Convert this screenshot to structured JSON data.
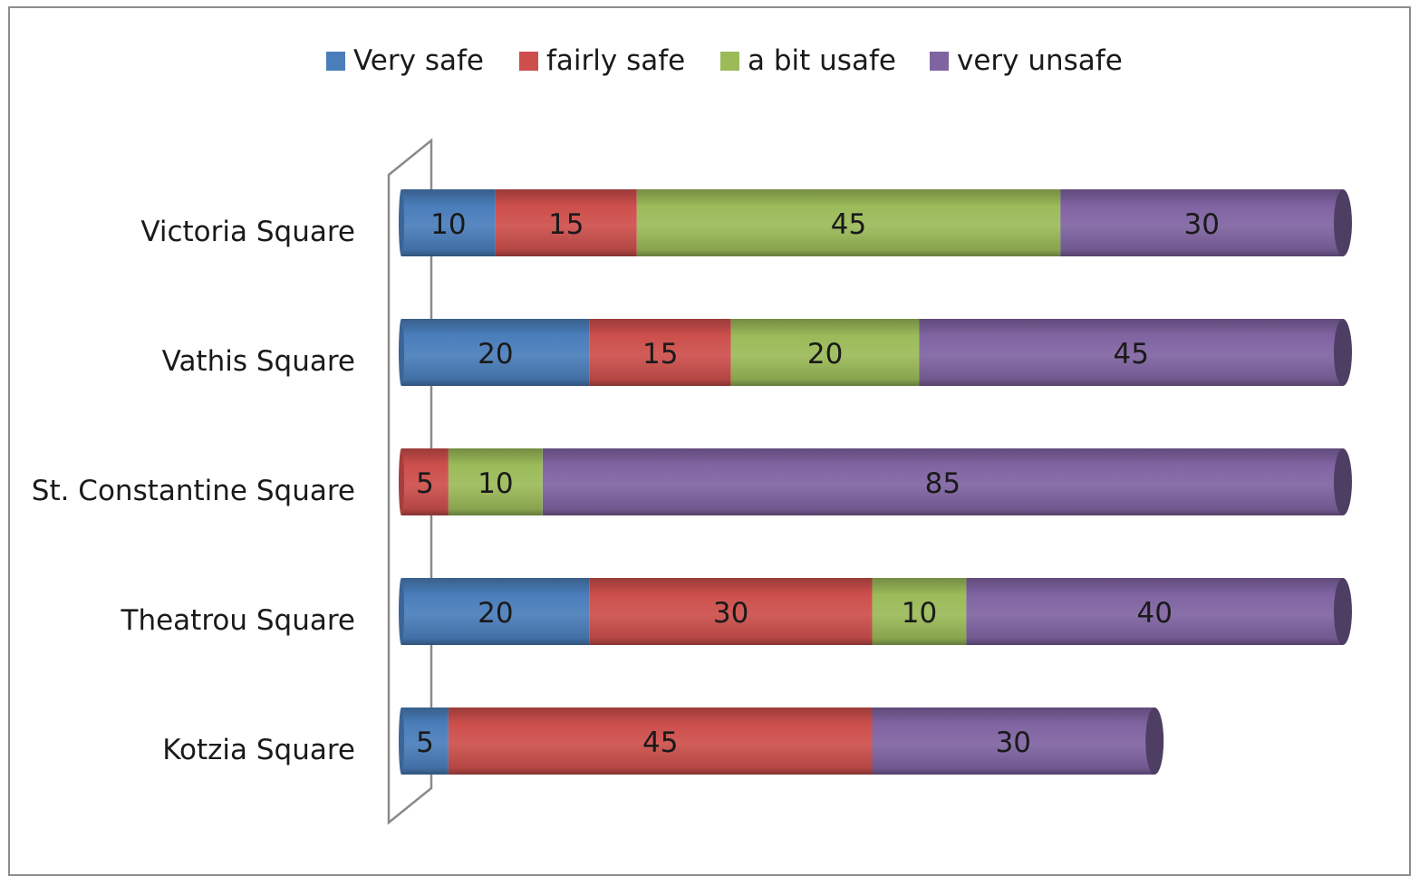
{
  "chart_data": {
    "type": "bar",
    "orientation": "horizontal",
    "stacked": true,
    "style": "3d-cylinder",
    "title": "",
    "xlabel": "",
    "ylabel": "",
    "xlim": [
      0,
      100
    ],
    "grid": false,
    "legend_position": "top",
    "categories": [
      "Victoria Square",
      "Vathis Square",
      "St. Constantine Square",
      "Theatrou Square",
      "Kotzia Square"
    ],
    "series": [
      {
        "name": "Very safe",
        "color": "#4a7ebb",
        "values": [
          10,
          20,
          0,
          20,
          5
        ]
      },
      {
        "name": "fairly safe",
        "color": "#cd4f4c",
        "values": [
          15,
          15,
          5,
          30,
          45
        ]
      },
      {
        "name": "a bit usafe",
        "color": "#9bbb59",
        "values": [
          45,
          20,
          10,
          10,
          0
        ]
      },
      {
        "name": "very unsafe",
        "color": "#8064a2",
        "values": [
          30,
          45,
          85,
          40,
          30
        ]
      }
    ]
  }
}
